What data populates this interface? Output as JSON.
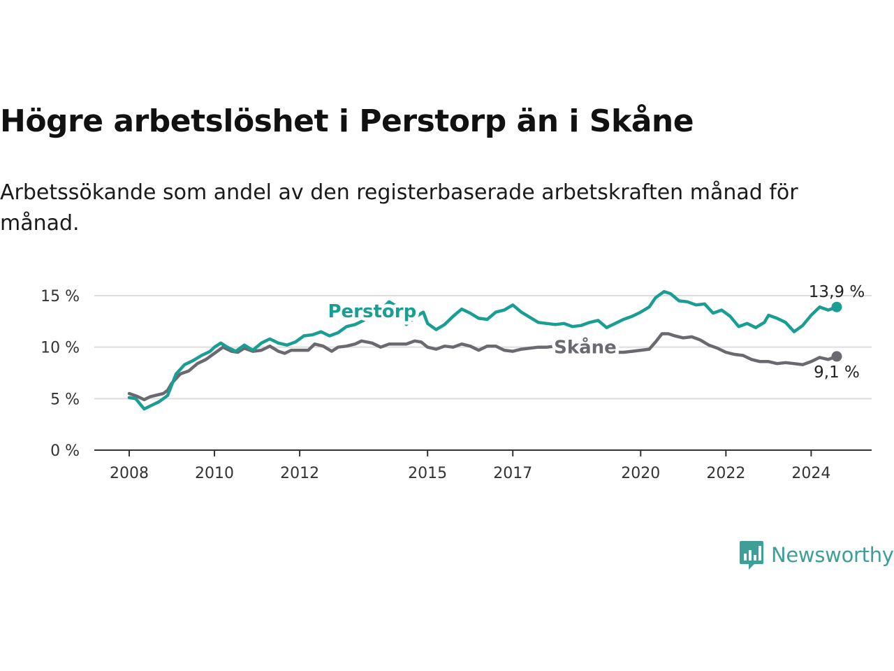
{
  "title": "Högre arbetslöshet i Perstorp än i Skåne",
  "subtitle": "Arbetssökande som andel av den registerbaserade arbetskraften månad för månad.",
  "brand": {
    "name": "Newsworthy",
    "color": "#3e9e98"
  },
  "chart_data": {
    "type": "line",
    "title": "Högre arbetslöshet i Perstorp än i Skåne",
    "xlabel": "",
    "ylabel": "",
    "ylim": [
      0,
      15
    ],
    "xlim": [
      2008,
      2024.6
    ],
    "y_ticks": [
      {
        "value": 0,
        "label": "0 %"
      },
      {
        "value": 5,
        "label": "5 %"
      },
      {
        "value": 10,
        "label": "10 %"
      },
      {
        "value": 15,
        "label": "15 %"
      }
    ],
    "x_ticks": [
      {
        "value": 2008,
        "label": "2008"
      },
      {
        "value": 2010,
        "label": "2010"
      },
      {
        "value": 2012,
        "label": "2012"
      },
      {
        "value": 2015,
        "label": "2015"
      },
      {
        "value": 2017,
        "label": "2017"
      },
      {
        "value": 2020,
        "label": "2020"
      },
      {
        "value": 2022,
        "label": "2022"
      },
      {
        "value": 2024,
        "label": "2024"
      }
    ],
    "grid": true,
    "series": [
      {
        "name": "Skåne",
        "label": "Skåne",
        "color": "#6b6970",
        "end_label": "9,1 %",
        "points": [
          [
            2008.0,
            5.5
          ],
          [
            2008.2,
            5.2
          ],
          [
            2008.35,
            4.9
          ],
          [
            2008.5,
            5.2
          ],
          [
            2008.8,
            5.5
          ],
          [
            2008.9,
            5.8
          ],
          [
            2009.0,
            6.5
          ],
          [
            2009.2,
            7.4
          ],
          [
            2009.4,
            7.7
          ],
          [
            2009.6,
            8.4
          ],
          [
            2009.8,
            8.8
          ],
          [
            2010.0,
            9.4
          ],
          [
            2010.2,
            10.0
          ],
          [
            2010.4,
            9.6
          ],
          [
            2010.55,
            9.5
          ],
          [
            2010.7,
            9.9
          ],
          [
            2010.9,
            9.6
          ],
          [
            2011.1,
            9.7
          ],
          [
            2011.3,
            10.1
          ],
          [
            2011.5,
            9.6
          ],
          [
            2011.65,
            9.4
          ],
          [
            2011.8,
            9.7
          ],
          [
            2012.0,
            9.7
          ],
          [
            2012.2,
            9.7
          ],
          [
            2012.35,
            10.3
          ],
          [
            2012.55,
            10.1
          ],
          [
            2012.75,
            9.6
          ],
          [
            2012.9,
            10.0
          ],
          [
            2013.1,
            10.1
          ],
          [
            2013.3,
            10.3
          ],
          [
            2013.45,
            10.6
          ],
          [
            2013.7,
            10.4
          ],
          [
            2013.9,
            10.0
          ],
          [
            2014.1,
            10.3
          ],
          [
            2014.3,
            10.3
          ],
          [
            2014.5,
            10.3
          ],
          [
            2014.7,
            10.6
          ],
          [
            2014.85,
            10.5
          ],
          [
            2015.0,
            10.0
          ],
          [
            2015.2,
            9.8
          ],
          [
            2015.4,
            10.1
          ],
          [
            2015.6,
            10.0
          ],
          [
            2015.8,
            10.3
          ],
          [
            2016.0,
            10.1
          ],
          [
            2016.2,
            9.7
          ],
          [
            2016.4,
            10.1
          ],
          [
            2016.6,
            10.1
          ],
          [
            2016.8,
            9.7
          ],
          [
            2017.0,
            9.6
          ],
          [
            2017.2,
            9.8
          ],
          [
            2017.4,
            9.9
          ],
          [
            2017.6,
            10.0
          ],
          [
            2017.8,
            10.0
          ],
          [
            2018.0,
            10.1
          ],
          [
            2018.2,
            10.0
          ],
          [
            2018.4,
            9.7
          ],
          [
            2018.6,
            9.9
          ],
          [
            2018.8,
            9.9
          ],
          [
            2019.0,
            9.9
          ],
          [
            2019.2,
            9.8
          ],
          [
            2019.4,
            9.5
          ],
          [
            2019.6,
            9.5
          ],
          [
            2019.8,
            9.6
          ],
          [
            2020.0,
            9.7
          ],
          [
            2020.2,
            9.8
          ],
          [
            2020.35,
            10.5
          ],
          [
            2020.5,
            11.3
          ],
          [
            2020.65,
            11.3
          ],
          [
            2020.8,
            11.1
          ],
          [
            2021.0,
            10.9
          ],
          [
            2021.2,
            11.0
          ],
          [
            2021.4,
            10.7
          ],
          [
            2021.6,
            10.2
          ],
          [
            2021.8,
            9.9
          ],
          [
            2022.0,
            9.5
          ],
          [
            2022.2,
            9.3
          ],
          [
            2022.4,
            9.2
          ],
          [
            2022.6,
            8.8
          ],
          [
            2022.8,
            8.6
          ],
          [
            2023.0,
            8.6
          ],
          [
            2023.2,
            8.4
          ],
          [
            2023.4,
            8.5
          ],
          [
            2023.6,
            8.4
          ],
          [
            2023.8,
            8.3
          ],
          [
            2024.0,
            8.6
          ],
          [
            2024.2,
            9.0
          ],
          [
            2024.4,
            8.8
          ],
          [
            2024.6,
            9.1
          ]
        ]
      },
      {
        "name": "Perstorp",
        "label": "Perstorp",
        "color": "#1a9e94",
        "end_label": "13,9 %",
        "points": [
          [
            2008.0,
            5.1
          ],
          [
            2008.15,
            5.0
          ],
          [
            2008.35,
            4.0
          ],
          [
            2008.5,
            4.3
          ],
          [
            2008.7,
            4.7
          ],
          [
            2008.9,
            5.3
          ],
          [
            2009.1,
            7.4
          ],
          [
            2009.3,
            8.3
          ],
          [
            2009.5,
            8.7
          ],
          [
            2009.7,
            9.2
          ],
          [
            2009.9,
            9.6
          ],
          [
            2010.0,
            10.0
          ],
          [
            2010.15,
            10.4
          ],
          [
            2010.3,
            10.0
          ],
          [
            2010.5,
            9.6
          ],
          [
            2010.7,
            10.2
          ],
          [
            2010.9,
            9.7
          ],
          [
            2011.1,
            10.4
          ],
          [
            2011.3,
            10.8
          ],
          [
            2011.5,
            10.4
          ],
          [
            2011.7,
            10.2
          ],
          [
            2011.9,
            10.5
          ],
          [
            2012.1,
            11.1
          ],
          [
            2012.3,
            11.2
          ],
          [
            2012.5,
            11.5
          ],
          [
            2012.7,
            11.1
          ],
          [
            2012.9,
            11.4
          ],
          [
            2013.1,
            12.0
          ],
          [
            2013.3,
            12.2
          ],
          [
            2013.5,
            12.6
          ],
          [
            2013.7,
            13.3
          ],
          [
            2013.9,
            13.6
          ],
          [
            2014.1,
            14.4
          ],
          [
            2014.3,
            13.9
          ],
          [
            2014.5,
            12.2
          ],
          [
            2014.7,
            12.9
          ],
          [
            2014.9,
            13.4
          ],
          [
            2015.0,
            12.3
          ],
          [
            2015.2,
            11.7
          ],
          [
            2015.4,
            12.2
          ],
          [
            2015.6,
            13.0
          ],
          [
            2015.8,
            13.7
          ],
          [
            2016.0,
            13.3
          ],
          [
            2016.2,
            12.8
          ],
          [
            2016.4,
            12.7
          ],
          [
            2016.6,
            13.4
          ],
          [
            2016.8,
            13.6
          ],
          [
            2017.0,
            14.1
          ],
          [
            2017.2,
            13.4
          ],
          [
            2017.4,
            12.9
          ],
          [
            2017.6,
            12.4
          ],
          [
            2017.8,
            12.3
          ],
          [
            2018.0,
            12.2
          ],
          [
            2018.2,
            12.3
          ],
          [
            2018.4,
            12.0
          ],
          [
            2018.6,
            12.1
          ],
          [
            2018.8,
            12.4
          ],
          [
            2019.0,
            12.6
          ],
          [
            2019.2,
            11.9
          ],
          [
            2019.4,
            12.3
          ],
          [
            2019.6,
            12.7
          ],
          [
            2019.8,
            13.0
          ],
          [
            2020.0,
            13.4
          ],
          [
            2020.2,
            13.9
          ],
          [
            2020.35,
            14.8
          ],
          [
            2020.55,
            15.4
          ],
          [
            2020.7,
            15.2
          ],
          [
            2020.9,
            14.5
          ],
          [
            2021.1,
            14.4
          ],
          [
            2021.3,
            14.1
          ],
          [
            2021.5,
            14.2
          ],
          [
            2021.7,
            13.3
          ],
          [
            2021.9,
            13.6
          ],
          [
            2022.1,
            13.0
          ],
          [
            2022.3,
            12.0
          ],
          [
            2022.5,
            12.3
          ],
          [
            2022.7,
            11.9
          ],
          [
            2022.9,
            12.4
          ],
          [
            2023.0,
            13.1
          ],
          [
            2023.2,
            12.8
          ],
          [
            2023.4,
            12.4
          ],
          [
            2023.6,
            11.5
          ],
          [
            2023.8,
            12.1
          ],
          [
            2024.0,
            13.1
          ],
          [
            2024.2,
            13.9
          ],
          [
            2024.4,
            13.6
          ],
          [
            2024.6,
            13.9
          ]
        ]
      }
    ]
  }
}
